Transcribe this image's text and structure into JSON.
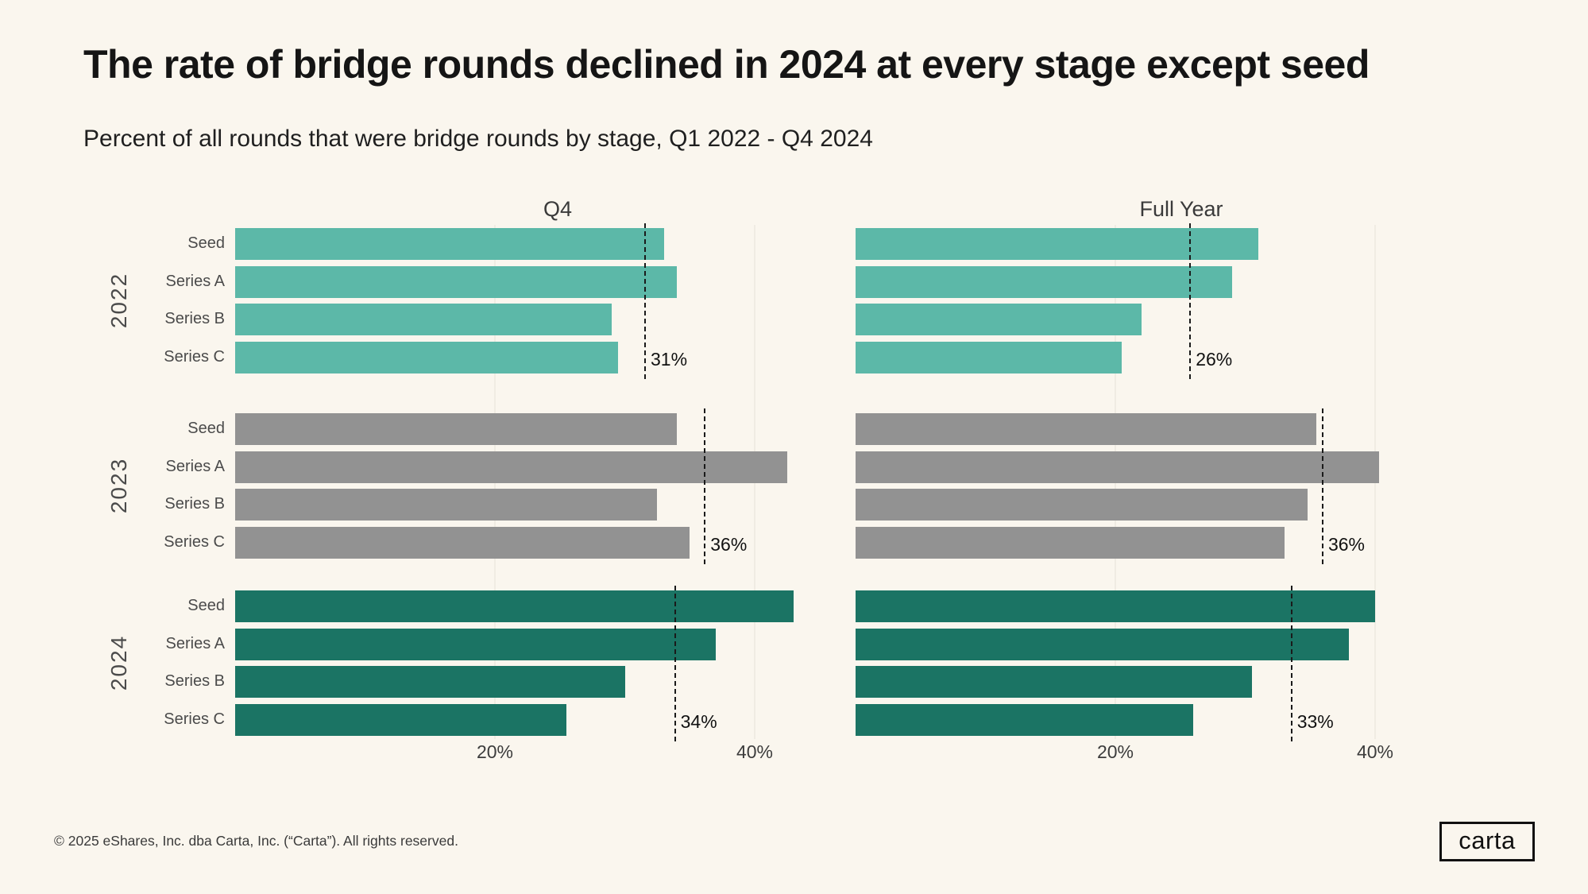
{
  "title": "The rate of bridge rounds declined in 2024 at every stage except seed",
  "subtitle": "Percent of all rounds that were bridge rounds by stage, Q1 2022 - Q4 2024",
  "footer": {
    "text": "© 2025 eShares, Inc. dba Carta, Inc. (“Carta”). All rights reserved."
  },
  "logo": {
    "text": "carta"
  },
  "colors": {
    "background": "#faf6ee",
    "series": {
      "2022": "#5cb8a8",
      "2023": "#929292",
      "2024": "#1b7464"
    },
    "average_line": "#1a1a1a",
    "gridline": "#f0ece3"
  },
  "years": [
    "2022",
    "2023",
    "2024"
  ],
  "row_labels": [
    "Seed",
    "Series A",
    "Series B",
    "Series C"
  ],
  "chart_data": [
    {
      "type": "bar",
      "id": "q4",
      "title": "Q4",
      "orientation": "horizontal",
      "categories": [
        "Seed",
        "Series A",
        "Series B",
        "Series C"
      ],
      "xlim": [
        0,
        44
      ],
      "xticks": [
        20,
        40
      ],
      "xtick_labels": [
        "20%",
        "40%"
      ],
      "grid": "vertical-faint",
      "series": [
        {
          "name": "2022",
          "values": [
            33,
            34,
            29,
            29.5
          ],
          "average_value": 31.5,
          "average_label": "31%"
        },
        {
          "name": "2023",
          "values": [
            34,
            42.5,
            32.5,
            35
          ],
          "average_value": 36.1,
          "average_label": "36%"
        },
        {
          "name": "2024",
          "values": [
            43,
            37,
            30,
            25.5
          ],
          "average_value": 33.8,
          "average_label": "34%"
        }
      ]
    },
    {
      "type": "bar",
      "id": "full-year",
      "title": "Full Year",
      "orientation": "horizontal",
      "categories": [
        "Seed",
        "Series A",
        "Series B",
        "Series C"
      ],
      "xlim": [
        0,
        44
      ],
      "xticks": [
        20,
        40
      ],
      "xtick_labels": [
        "20%",
        "40%"
      ],
      "grid": "vertical-faint",
      "series": [
        {
          "name": "2022",
          "values": [
            31,
            29,
            22,
            20.5
          ],
          "average_value": 25.7,
          "average_label": "26%"
        },
        {
          "name": "2023",
          "values": [
            35.5,
            40.3,
            34.8,
            33
          ],
          "average_value": 35.9,
          "average_label": "36%"
        },
        {
          "name": "2024",
          "values": [
            40,
            38,
            30.5,
            26
          ],
          "average_value": 33.5,
          "average_label": "33%"
        }
      ]
    }
  ]
}
